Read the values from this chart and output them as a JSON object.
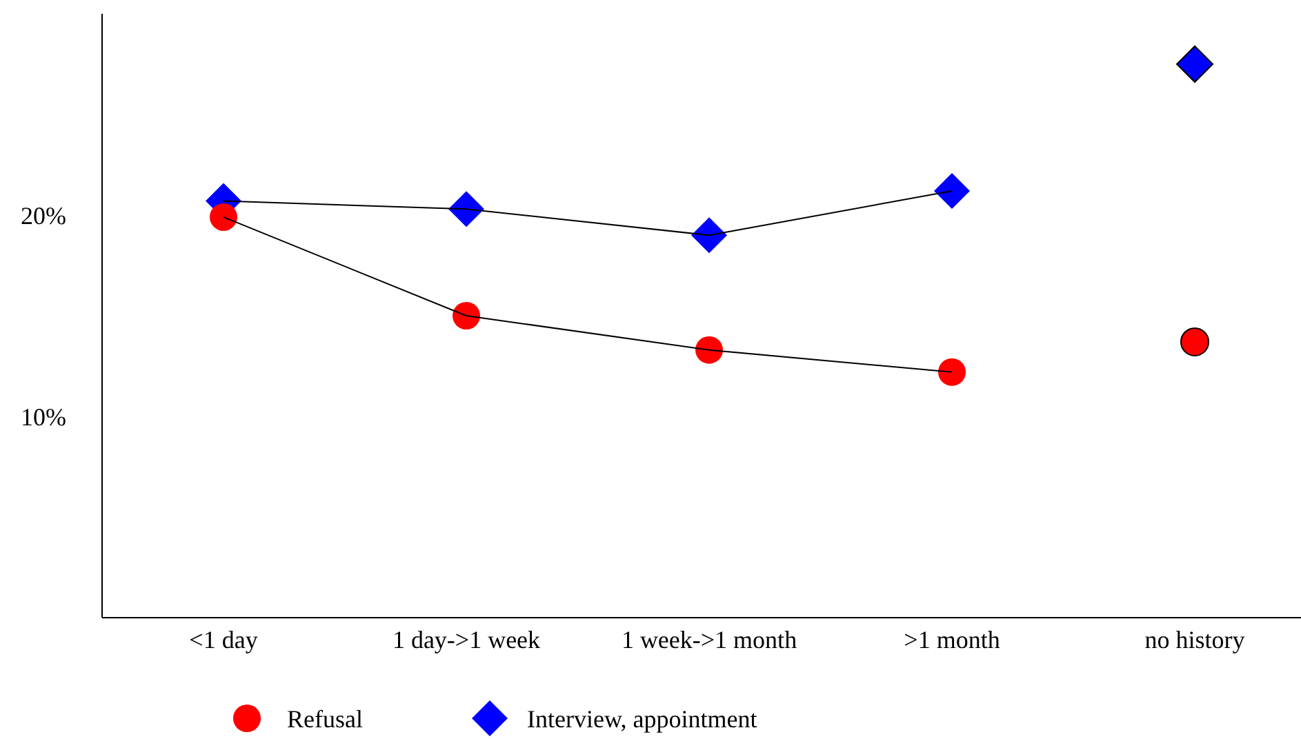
{
  "chart_data": {
    "type": "line",
    "categories": [
      "<1 day",
      "1 day->1 week",
      "1 week->1 month",
      ">1 month",
      "no history"
    ],
    "series": [
      {
        "name": "Refusal",
        "color": "#ff0000",
        "marker": "circle",
        "values": [
          19.9,
          15.0,
          13.3,
          12.2,
          null
        ]
      },
      {
        "name": "Interview, appointment",
        "color": "#0000ff",
        "marker": "diamond",
        "values": [
          20.7,
          20.3,
          19.0,
          21.2,
          null
        ]
      },
      {
        "type": "scatter",
        "color": "#ff0000",
        "marker": "circle",
        "x": [
          "no history"
        ],
        "values": [
          13.7
        ]
      },
      {
        "type": "scatter",
        "color": "#0000ff",
        "marker": "diamond",
        "x": [
          "no history"
        ],
        "values": [
          27.5
        ]
      }
    ],
    "ylim": [
      0,
      30
    ],
    "yticks": [
      {
        "value": 10,
        "label": "10%"
      },
      {
        "value": 20,
        "label": "20%"
      }
    ],
    "grid": false,
    "legend": "bottom"
  }
}
